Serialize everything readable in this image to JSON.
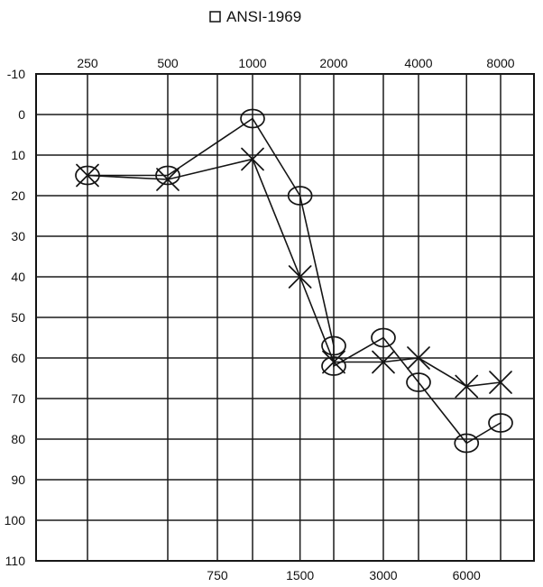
{
  "title": "ANSI-1969",
  "colors": {
    "ink": "#141414",
    "grid": "#1a1a1a",
    "background": "#ffffff"
  },
  "icons": {
    "title_checkbox": "empty-square-icon"
  },
  "chart_data": {
    "type": "line",
    "title": "ANSI-1969",
    "xlabel": "",
    "ylabel": "",
    "x_scale": "log",
    "y_inverted": true,
    "ylim": [
      -10,
      110
    ],
    "y_ticks": [
      "-10",
      "0",
      "10",
      "20",
      "30",
      "40",
      "50",
      "60",
      "70",
      "80",
      "90",
      "100",
      "110"
    ],
    "x_ticks_top": [
      "250",
      "500",
      "1000",
      "2000",
      "4000",
      "8000"
    ],
    "x_ticks_bottom": [
      "750",
      "1500",
      "3000",
      "6000"
    ],
    "grid": true,
    "series": [
      {
        "marker": "O",
        "x": [
          250,
          500,
          1000,
          1500,
          2000,
          2000,
          3000,
          4000,
          6000,
          8000
        ],
        "y": [
          15,
          15,
          1,
          20,
          57,
          62,
          55,
          66,
          81,
          76
        ]
      },
      {
        "marker": "X",
        "x": [
          250,
          500,
          1000,
          1500,
          2000,
          3000,
          4000,
          6000,
          8000
        ],
        "y": [
          15,
          16,
          11,
          40,
          61,
          61,
          60,
          67,
          66
        ]
      }
    ]
  }
}
